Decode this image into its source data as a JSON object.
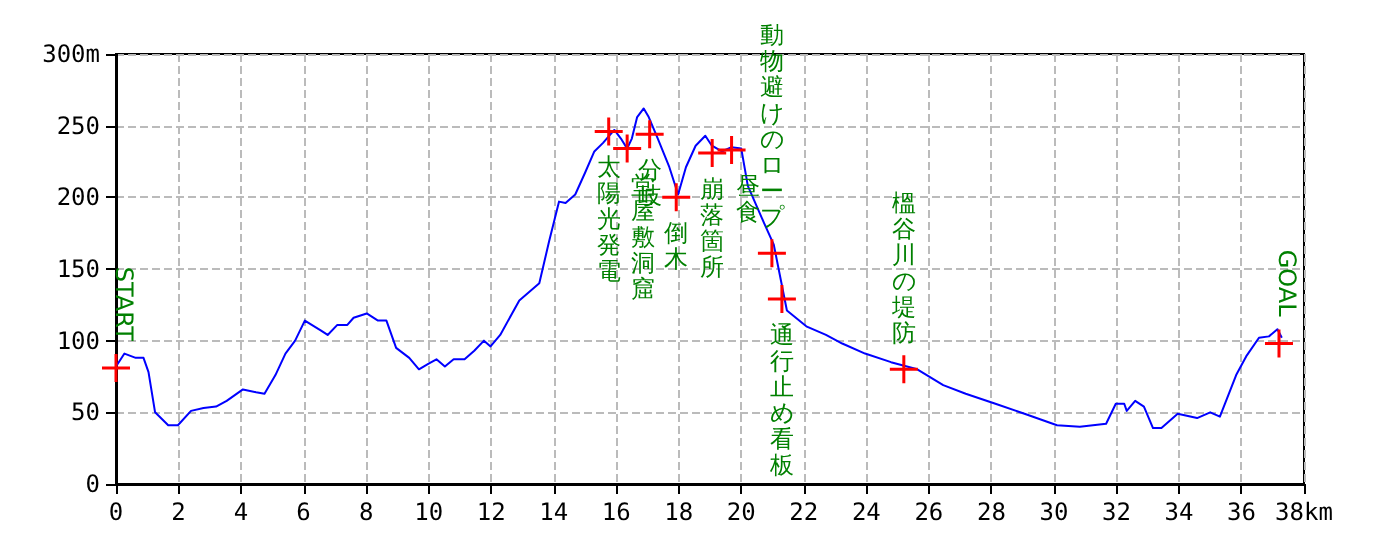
{
  "chart_data": {
    "type": "line",
    "x": [
      0,
      0.27,
      0.63,
      0.88,
      1.04,
      1.25,
      1.67,
      1.98,
      2.4,
      2.8,
      3.2,
      3.54,
      4.06,
      4.48,
      4.75,
      5.1,
      5.42,
      5.73,
      6.04,
      6.56,
      6.77,
      7.08,
      7.4,
      7.6,
      8.02,
      8.38,
      8.65,
      8.96,
      9.38,
      9.69,
      10.0,
      10.25,
      10.52,
      10.8,
      11.15,
      11.46,
      11.77,
      11.98,
      12.29,
      12.9,
      13.54,
      13.85,
      14.17,
      14.38,
      14.69,
      15.0,
      15.3,
      15.58,
      15.94,
      16.15,
      16.35,
      16.5,
      16.67,
      16.88,
      17.04,
      17.33,
      17.7,
      17.98,
      18.23,
      18.54,
      18.85,
      19.06,
      19.38,
      19.69,
      20.0,
      20.21,
      20.73,
      21.04,
      21.46,
      22.08,
      22.71,
      23.23,
      23.96,
      24.79,
      25.63,
      26.46,
      27.18,
      28.13,
      29.06,
      30.1,
      30.83,
      31.67,
      31.98,
      32.25,
      32.33,
      32.6,
      32.88,
      33.17,
      33.44,
      33.96,
      34.58,
      35.0,
      35.31,
      35.83,
      36.15,
      36.56,
      36.88,
      37.15,
      37.29
    ],
    "series": [
      {
        "color": "#0000ff",
        "values": [
          82,
          91,
          88,
          88,
          78,
          50,
          41,
          41,
          51,
          53,
          54,
          58,
          66,
          64,
          63,
          76,
          91,
          100,
          114,
          107,
          104,
          111,
          111,
          116,
          119,
          114,
          114,
          95,
          88,
          80,
          84,
          87,
          82,
          87,
          87,
          93,
          100,
          96,
          104,
          128,
          140,
          169,
          197,
          196,
          202,
          217,
          232,
          238,
          247,
          241,
          234,
          241,
          256,
          262,
          256,
          241,
          221,
          202,
          221,
          236,
          243,
          236,
          232,
          235,
          234,
          208,
          182,
          167,
          121,
          110,
          104,
          98,
          91,
          85,
          80,
          69,
          63,
          56,
          49,
          41,
          40,
          42,
          56,
          56,
          51,
          58,
          54,
          39,
          39,
          49,
          46,
          50,
          47,
          76,
          89,
          102,
          103,
          108,
          102
        ]
      }
    ],
    "xlim": [
      0,
      38
    ],
    "xticks": [
      0,
      2,
      4,
      6,
      8,
      10,
      12,
      14,
      16,
      18,
      20,
      22,
      24,
      26,
      28,
      30,
      32,
      34,
      36,
      {
        "value": 38,
        "label": "38km"
      }
    ],
    "ylim": [
      0,
      300
    ],
    "yticks": [
      0,
      50,
      100,
      150,
      200,
      250,
      {
        "value": 300,
        "label": "300m"
      }
    ],
    "grid": true,
    "marker": "none",
    "line_style": "solid",
    "annotations": [
      {
        "text": "START",
        "x": 0,
        "y": 81
      },
      {
        "text": "太陽光発電",
        "x": 15.76,
        "y": 246
      },
      {
        "text": "堂屋敷洞窟",
        "x": 16.35,
        "y": 234
      },
      {
        "text": "分岐",
        "x": 17.07,
        "y": 244
      },
      {
        "text": "倒木",
        "x": 17.92,
        "y": 200
      },
      {
        "text": "崩落箇所",
        "x": 19.07,
        "y": 231
      },
      {
        "text": "昼食",
        "x": 19.69,
        "y": 233
      },
      {
        "text": "動物避けのロープ",
        "x": 20.98,
        "y": 161
      },
      {
        "text": "通行止め看板",
        "x": 21.3,
        "y": 129
      },
      {
        "text": "榲谷川の堤防",
        "x": 25.2,
        "y": 80
      },
      {
        "text": "GOAL",
        "x": 37.2,
        "y": 98
      }
    ]
  }
}
